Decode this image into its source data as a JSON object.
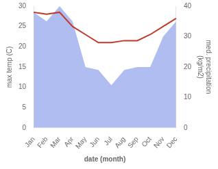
{
  "chart_data": {
    "type": "line",
    "categories": [
      "Jan",
      "Feb",
      "Mar",
      "Apr",
      "May",
      "Jun",
      "Jul",
      "Aug",
      "Sep",
      "Oct",
      "Nov",
      "Dec"
    ],
    "series": [
      {
        "type": "area",
        "color": "#b0bdf0",
        "axis": "y2",
        "values": [
          38,
          35,
          40,
          35,
          20,
          19,
          14,
          19,
          20,
          20,
          30,
          35
        ]
      },
      {
        "type": "line",
        "color": "#c0392b",
        "values": [
          28.5,
          28.0,
          28.5,
          25.0,
          23.0,
          21.0,
          21.0,
          21.5,
          21.5,
          23.0,
          25.0,
          27.0
        ]
      }
    ],
    "xlabel": "date (month)",
    "ylabel": "max temp (C)",
    "y2label": "med. precipitation\n(kg/m2)",
    "ylim": [
      0,
      30
    ],
    "yticks": [
      0,
      5,
      10,
      15,
      20,
      25,
      30
    ],
    "y2lim": [
      0,
      40
    ],
    "y2ticks": [
      0,
      10,
      20,
      30,
      40
    ],
    "grid": false
  }
}
